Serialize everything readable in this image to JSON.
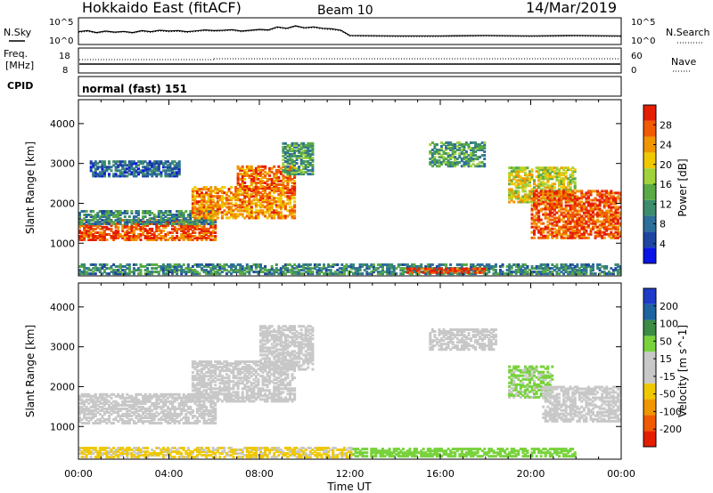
{
  "header": {
    "station": "Hokkaido East (fitACF)",
    "beam": "Beam 10",
    "date": "14/Mar/2019"
  },
  "noise_panel": {
    "left_label": "N.Sky",
    "right_label": "N.Search",
    "left_ticks": [
      "10^5",
      "10^0"
    ],
    "right_ticks": [
      "10^5",
      "10^0"
    ]
  },
  "freq_panel": {
    "left_label_1": "Freq.",
    "left_label_2": "[MHz]",
    "right_label": "Nave",
    "left_ticks": [
      "18",
      "8"
    ],
    "right_ticks": [
      "60",
      "0"
    ]
  },
  "cpid_panel": {
    "label": "CPID",
    "text": "normal (fast) 151"
  },
  "colors": {
    "power_scale": [
      "#0a14e6",
      "#1e46a0",
      "#2e6e9a",
      "#3c8c6e",
      "#5aaa46",
      "#a0d23c",
      "#f0c800",
      "#f09600",
      "#f05a00",
      "#e61e00"
    ],
    "velocity_scale": [
      "#1e3cc8",
      "#1e64a0",
      "#3c8c46",
      "#78d23c",
      "#c8c8c8",
      "#c8c8c8",
      "#f0c800",
      "#f09600",
      "#f05a00",
      "#e61e00"
    ],
    "ground_scatter": "#c8c8c8"
  },
  "chart_data": [
    {
      "type": "line",
      "name": "noise",
      "x_unit": "hours UT",
      "y_scale": "log",
      "ylim": [
        1,
        100000
      ],
      "x": [
        0,
        0.4,
        0.8,
        1.2,
        1.6,
        2.0,
        2.4,
        2.8,
        3.2,
        3.6,
        4.0,
        4.4,
        4.8,
        5.2,
        5.6,
        6.0,
        6.4,
        6.8,
        7.2,
        7.6,
        8.0,
        8.4,
        8.8,
        9.2,
        9.6,
        10.0,
        10.4,
        10.8,
        11.2,
        11.6,
        12,
        14,
        16,
        18,
        20,
        22,
        24
      ],
      "y": [
        300,
        500,
        200,
        400,
        250,
        350,
        200,
        500,
        300,
        600,
        400,
        500,
        300,
        450,
        700,
        500,
        600,
        800,
        400,
        600,
        900,
        700,
        3000,
        1500,
        5000,
        2000,
        3000,
        1500,
        1200,
        600,
        50,
        40,
        40,
        50,
        40,
        50,
        40
      ]
    },
    {
      "type": "line",
      "name": "frequency",
      "x_unit": "hours UT",
      "ylim": [
        8,
        18
      ],
      "x": [
        0,
        6,
        24
      ],
      "y": [
        10.5,
        10.5,
        10.5
      ]
    },
    {
      "type": "heatmap",
      "name": "power",
      "title": "Power [dB]",
      "ylabel": "Slant Range [km]",
      "xlabel": "Time UT",
      "x_ticks": [
        "00:00",
        "04:00",
        "08:00",
        "12:00",
        "16:00",
        "20:00",
        "00:00"
      ],
      "y_ticks": [
        "1000",
        "2000",
        "3000",
        "4000"
      ],
      "xlim": [
        0,
        24
      ],
      "ylim": [
        180,
        4600
      ],
      "colorbar_ticks": [
        "4",
        "8",
        "12",
        "16",
        "20",
        "24",
        "28"
      ],
      "colorbar_range": [
        0,
        30
      ],
      "regions": [
        {
          "t0": 0,
          "t1": 6,
          "r0": 1050,
          "r1": 1550,
          "v": 26
        },
        {
          "t0": 0,
          "t1": 6,
          "r0": 1450,
          "r1": 1800,
          "v": 10
        },
        {
          "t0": 0.5,
          "t1": 4.5,
          "r0": 2650,
          "r1": 3050,
          "v": 7
        },
        {
          "t0": 5,
          "t1": 9.5,
          "r0": 1600,
          "r1": 2400,
          "v": 23
        },
        {
          "t0": 7,
          "t1": 9.5,
          "r0": 2300,
          "r1": 2900,
          "v": 25
        },
        {
          "t0": 9,
          "t1": 10.3,
          "r0": 2700,
          "r1": 3500,
          "v": 12
        },
        {
          "t0": 15.5,
          "t1": 18,
          "r0": 2900,
          "r1": 3500,
          "v": 12
        },
        {
          "t0": 19,
          "t1": 22,
          "r0": 2000,
          "r1": 2900,
          "v": 18
        },
        {
          "t0": 20,
          "t1": 24,
          "r0": 1100,
          "r1": 2300,
          "v": 26
        },
        {
          "t0": 0,
          "t1": 24,
          "r0": 200,
          "r1": 450,
          "v": 10
        },
        {
          "t0": 14.5,
          "t1": 18,
          "r0": 230,
          "r1": 360,
          "v": 28
        }
      ]
    },
    {
      "type": "heatmap",
      "name": "velocity",
      "title": "Velocity [m s^-1]",
      "ylabel": "Slant Range [km]",
      "xlabel": "Time UT",
      "x_ticks": [
        "00:00",
        "04:00",
        "08:00",
        "12:00",
        "16:00",
        "20:00",
        "00:00"
      ],
      "y_ticks": [
        "1000",
        "2000",
        "3000",
        "4000"
      ],
      "xlim": [
        0,
        24
      ],
      "ylim": [
        180,
        4600
      ],
      "colorbar_ticks": [
        "200",
        "100",
        "50",
        "15",
        "-15",
        "-50",
        "-100",
        "-200"
      ],
      "colorbar_range": [
        -250,
        250
      ],
      "regions": [
        {
          "t0": 0,
          "t1": 6,
          "r0": 1050,
          "r1": 1800,
          "v": 0
        },
        {
          "t0": 5,
          "t1": 9.5,
          "r0": 1600,
          "r1": 2600,
          "v": 0
        },
        {
          "t0": 8,
          "t1": 10.3,
          "r0": 2400,
          "r1": 3500,
          "v": 0
        },
        {
          "t0": 15.5,
          "t1": 18.5,
          "r0": 2900,
          "r1": 3400,
          "v": 0
        },
        {
          "t0": 19,
          "t1": 21,
          "r0": 1700,
          "r1": 2500,
          "v": 60
        },
        {
          "t0": 20.5,
          "t1": 24,
          "r0": 1100,
          "r1": 2000,
          "v": 0
        },
        {
          "t0": 12,
          "t1": 22,
          "r0": 220,
          "r1": 420,
          "v": 70
        },
        {
          "t0": 0,
          "t1": 12,
          "r0": 200,
          "r1": 450,
          "v": -60
        }
      ]
    }
  ]
}
